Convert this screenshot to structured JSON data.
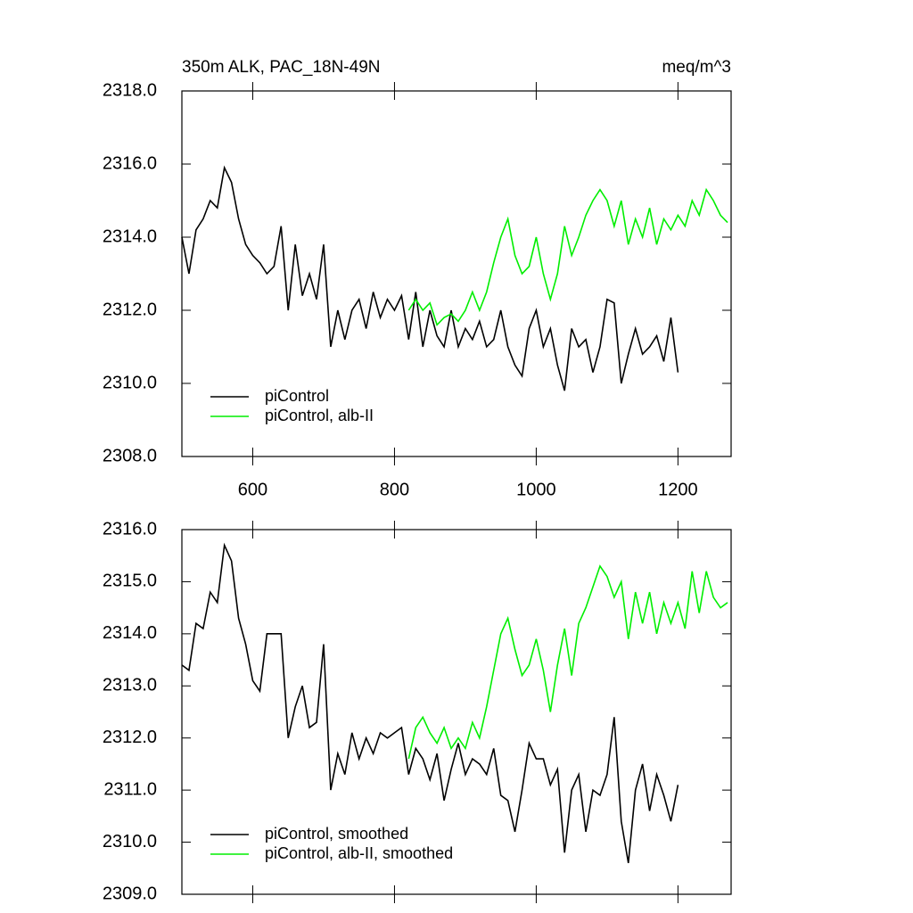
{
  "chart_data": [
    {
      "type": "line",
      "title": "350m ALK, PAC_18N-49N",
      "units": "meq/m^3",
      "xlim": [
        500,
        1275
      ],
      "xticks": [
        600,
        800,
        1000,
        1200
      ],
      "ylim": [
        2308,
        2318
      ],
      "yticks": [
        {
          "value": 2308,
          "label": "2308.0"
        },
        {
          "value": 2310,
          "label": "2310.0"
        },
        {
          "value": 2312,
          "label": "2312.0"
        },
        {
          "value": 2314,
          "label": "2314.0"
        },
        {
          "value": 2316,
          "label": "2316.0"
        },
        {
          "value": 2318,
          "label": "2318.0"
        }
      ],
      "legend": "lower left",
      "series": [
        {
          "name": "piControl",
          "color": "#000000",
          "x": [
            500,
            510,
            520,
            530,
            540,
            550,
            560,
            570,
            580,
            590,
            600,
            610,
            620,
            630,
            640,
            650,
            660,
            670,
            680,
            690,
            700,
            710,
            720,
            730,
            740,
            750,
            760,
            770,
            780,
            790,
            800,
            810,
            820,
            830,
            840,
            850,
            860,
            870,
            880,
            890,
            900,
            910,
            920,
            930,
            940,
            950,
            960,
            970,
            980,
            990,
            1000,
            1010,
            1020,
            1030,
            1040,
            1050,
            1060,
            1070,
            1080,
            1090,
            1100,
            1110,
            1120,
            1130,
            1140,
            1150,
            1160,
            1170,
            1180,
            1190,
            1200
          ],
          "values": [
            2314.0,
            2313.0,
            2314.2,
            2314.5,
            2315.0,
            2314.8,
            2315.9,
            2315.5,
            2314.5,
            2313.8,
            2313.5,
            2313.3,
            2313.0,
            2313.2,
            2314.3,
            2312.0,
            2313.8,
            2312.4,
            2313.0,
            2312.3,
            2313.8,
            2311.0,
            2312.0,
            2311.2,
            2312.0,
            2312.3,
            2311.5,
            2312.5,
            2311.8,
            2312.3,
            2312.0,
            2312.4,
            2311.2,
            2312.5,
            2311.0,
            2312.0,
            2311.3,
            2311.0,
            2312.0,
            2311.0,
            2311.5,
            2311.2,
            2311.7,
            2311.0,
            2311.2,
            2312.0,
            2311.0,
            2310.5,
            2310.2,
            2311.5,
            2312.0,
            2311.0,
            2311.5,
            2310.5,
            2309.8,
            2311.5,
            2311.0,
            2311.2,
            2310.3,
            2311.0,
            2312.3,
            2312.2,
            2310.0,
            2310.8,
            2311.5,
            2310.8,
            2311.0,
            2311.3,
            2310.6,
            2311.8,
            2310.3
          ]
        },
        {
          "name": "piControl, alb-II",
          "color": "#00ee00",
          "x": [
            820,
            830,
            840,
            850,
            860,
            870,
            880,
            890,
            900,
            910,
            920,
            930,
            940,
            950,
            960,
            970,
            980,
            990,
            1000,
            1010,
            1020,
            1030,
            1040,
            1050,
            1060,
            1070,
            1080,
            1090,
            1100,
            1110,
            1120,
            1130,
            1140,
            1150,
            1160,
            1170,
            1180,
            1190,
            1200,
            1210,
            1220,
            1230,
            1240,
            1250,
            1260,
            1270
          ],
          "values": [
            2312.0,
            2312.3,
            2312.0,
            2312.2,
            2311.6,
            2311.8,
            2311.9,
            2311.7,
            2312.0,
            2312.5,
            2312.0,
            2312.5,
            2313.3,
            2314.0,
            2314.5,
            2313.5,
            2313.0,
            2313.2,
            2314.0,
            2313.0,
            2312.3,
            2313.0,
            2314.3,
            2313.5,
            2314.0,
            2314.6,
            2315.0,
            2315.3,
            2315.0,
            2314.3,
            2315.0,
            2313.8,
            2314.5,
            2314.0,
            2314.8,
            2313.8,
            2314.5,
            2314.2,
            2314.6,
            2314.3,
            2315.0,
            2314.6,
            2315.3,
            2315.0,
            2314.6,
            2314.4
          ]
        }
      ]
    },
    {
      "type": "line",
      "xlim": [
        500,
        1275
      ],
      "xticks": [
        600,
        800,
        1000,
        1200
      ],
      "xtick_labels": false,
      "ylim": [
        2309,
        2316
      ],
      "yticks": [
        {
          "value": 2309,
          "label": "2309.0"
        },
        {
          "value": 2310,
          "label": "2310.0"
        },
        {
          "value": 2311,
          "label": "2311.0"
        },
        {
          "value": 2312,
          "label": "2312.0"
        },
        {
          "value": 2313,
          "label": "2313.0"
        },
        {
          "value": 2314,
          "label": "2314.0"
        },
        {
          "value": 2315,
          "label": "2315.0"
        },
        {
          "value": 2316,
          "label": "2316.0"
        }
      ],
      "legend": "lower left",
      "series": [
        {
          "name": "piControl, smoothed",
          "color": "#000000",
          "x": [
            500,
            510,
            520,
            530,
            540,
            550,
            560,
            570,
            580,
            590,
            600,
            610,
            620,
            630,
            640,
            650,
            660,
            670,
            680,
            690,
            700,
            710,
            720,
            730,
            740,
            750,
            760,
            770,
            780,
            790,
            800,
            810,
            820,
            830,
            840,
            850,
            860,
            870,
            880,
            890,
            900,
            910,
            920,
            930,
            940,
            950,
            960,
            970,
            980,
            990,
            1000,
            1010,
            1020,
            1030,
            1040,
            1050,
            1060,
            1070,
            1080,
            1090,
            1100,
            1110,
            1120,
            1130,
            1140,
            1150,
            1160,
            1170,
            1180,
            1190,
            1200
          ],
          "values": [
            2313.4,
            2313.3,
            2314.2,
            2314.1,
            2314.8,
            2314.6,
            2315.7,
            2315.4,
            2314.3,
            2313.8,
            2313.1,
            2312.9,
            2314.0,
            2314.0,
            2314.0,
            2312.0,
            2312.6,
            2313.0,
            2312.2,
            2312.3,
            2313.8,
            2311.0,
            2311.7,
            2311.3,
            2312.1,
            2311.6,
            2312.0,
            2311.7,
            2312.1,
            2312.0,
            2312.1,
            2312.2,
            2311.3,
            2311.8,
            2311.6,
            2311.2,
            2311.7,
            2310.8,
            2311.4,
            2311.9,
            2311.3,
            2311.6,
            2311.5,
            2311.3,
            2311.8,
            2310.9,
            2310.8,
            2310.2,
            2311.0,
            2311.9,
            2311.6,
            2311.6,
            2311.1,
            2311.4,
            2309.8,
            2311.0,
            2311.3,
            2310.2,
            2311.0,
            2310.9,
            2311.3,
            2312.4,
            2310.4,
            2309.6,
            2311.0,
            2311.5,
            2310.6,
            2311.3,
            2310.9,
            2310.4,
            2311.1
          ]
        },
        {
          "name": "piControl, alb-II, smoothed",
          "color": "#00ee00",
          "x": [
            820,
            830,
            840,
            850,
            860,
            870,
            880,
            890,
            900,
            910,
            920,
            930,
            940,
            950,
            960,
            970,
            980,
            990,
            1000,
            1010,
            1020,
            1030,
            1040,
            1050,
            1060,
            1070,
            1080,
            1090,
            1100,
            1110,
            1120,
            1130,
            1140,
            1150,
            1160,
            1170,
            1180,
            1190,
            1200,
            1210,
            1220,
            1230,
            1240,
            1250,
            1260,
            1270
          ],
          "values": [
            2311.6,
            2312.2,
            2312.4,
            2312.1,
            2311.9,
            2312.2,
            2311.8,
            2312.0,
            2311.8,
            2312.3,
            2312.0,
            2312.6,
            2313.3,
            2314.0,
            2314.3,
            2313.7,
            2313.2,
            2313.4,
            2313.9,
            2313.3,
            2312.5,
            2313.4,
            2314.1,
            2313.2,
            2314.2,
            2314.5,
            2314.9,
            2315.3,
            2315.1,
            2314.7,
            2315.0,
            2313.9,
            2314.8,
            2314.2,
            2314.8,
            2314.0,
            2314.6,
            2314.2,
            2314.6,
            2314.1,
            2315.2,
            2314.4,
            2315.2,
            2314.7,
            2314.5,
            2314.6
          ]
        }
      ]
    }
  ]
}
